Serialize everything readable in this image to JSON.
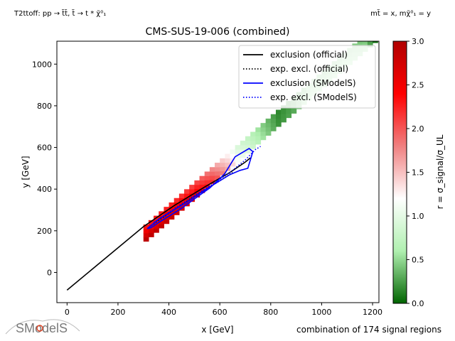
{
  "header": {
    "left_note": "T2ttoff: pp → t̃t̃, t̃ → t * χ̃⁰₁",
    "right_note": "mt̃ = x, mχ̃⁰₁ = y"
  },
  "footer": {
    "note": "combination of 174 signal regions",
    "logo_text": "SModelS"
  },
  "chart_data": {
    "type": "heatmap",
    "title": "CMS-SUS-19-006 (combined)",
    "xlabel": "x [GeV]",
    "ylabel": "y [GeV]",
    "xlim": [
      -40,
      1225
    ],
    "ylim": [
      -145,
      1110
    ],
    "xticks": [
      0,
      200,
      400,
      600,
      800,
      1000,
      1200
    ],
    "yticks": [
      0,
      200,
      400,
      600,
      800,
      1000
    ],
    "colorbar": {
      "label": "r = σ_signal/σ_UL",
      "range": [
        0,
        3
      ],
      "ticks": [
        "0.0",
        "0.5",
        "1.0",
        "1.5",
        "2.0",
        "2.5",
        "3.0"
      ],
      "colormap": [
        "#006400",
        "#b0f0b0",
        "#ffffff",
        "#f08080",
        "#ff0000",
        "#b00000"
      ]
    },
    "legend": {
      "position": "upper-right",
      "entries": [
        {
          "label": "exclusion (official)",
          "color": "#000000",
          "style": "solid"
        },
        {
          "label": "exp. excl. (official)",
          "color": "#000000",
          "style": "dotted"
        },
        {
          "label": "exclusion (SModelS)",
          "color": "#0000ff",
          "style": "solid"
        },
        {
          "label": "exp. excl. (SModelS)",
          "color": "#0000ff",
          "style": "dotted"
        }
      ]
    },
    "heatmap_band": {
      "offset": [
        {
          "x": 300,
          "dy": 150
        },
        {
          "x": 1225,
          "dy": 95
        }
      ],
      "thickness": 75,
      "x_range": [
        300,
        1225
      ],
      "r_profile": [
        {
          "x": 300,
          "r": 2.9
        },
        {
          "x": 400,
          "r": 2.8
        },
        {
          "x": 500,
          "r": 2.6
        },
        {
          "x": 560,
          "r": 2.2
        },
        {
          "x": 620,
          "r": 1.6
        },
        {
          "x": 660,
          "r": 1.15
        },
        {
          "x": 700,
          "r": 0.95
        },
        {
          "x": 760,
          "r": 0.55
        },
        {
          "x": 820,
          "r": 0.2
        },
        {
          "x": 880,
          "r": 0.3
        },
        {
          "x": 940,
          "r": 0.6
        },
        {
          "x": 1000,
          "r": 0.55
        },
        {
          "x": 1080,
          "r": 0.6
        },
        {
          "x": 1160,
          "r": 0.5
        },
        {
          "x": 1200,
          "r": 0.05
        }
      ]
    },
    "series": [
      {
        "name": "exclusion (official)",
        "color": "#000000",
        "style": "solid",
        "x": [
          0,
          300,
          420,
          540,
          640,
          700,
          720
        ],
        "y": [
          -85,
          220,
          320,
          410,
          480,
          530,
          550
        ]
      },
      {
        "name": "exp. excl. (official)",
        "color": "#000000",
        "style": "dotted",
        "x": [
          330,
          420,
          520,
          600,
          650
        ],
        "y": [
          225,
          300,
          380,
          440,
          480
        ]
      },
      {
        "name": "exclusion (SModelS)",
        "color": "#0000ff",
        "style": "solid",
        "x": [
          315,
          360,
          420,
          480,
          540,
          600,
          640,
          680,
          710,
          730,
          715,
          660,
          620,
          600,
          560,
          520,
          480,
          440,
          400,
          360,
          330,
          315
        ],
        "y": [
          210,
          255,
          300,
          345,
          395,
          440,
          470,
          490,
          500,
          580,
          595,
          555,
          475,
          450,
          405,
          370,
          335,
          300,
          270,
          240,
          215,
          210
        ]
      },
      {
        "name": "exp. excl. (SModelS)",
        "color": "#0000ff",
        "style": "dotted",
        "x": [
          340,
          420,
          500,
          580,
          640,
          700,
          740,
          760
        ],
        "y": [
          240,
          305,
          370,
          430,
          480,
          540,
          590,
          605
        ]
      }
    ]
  }
}
